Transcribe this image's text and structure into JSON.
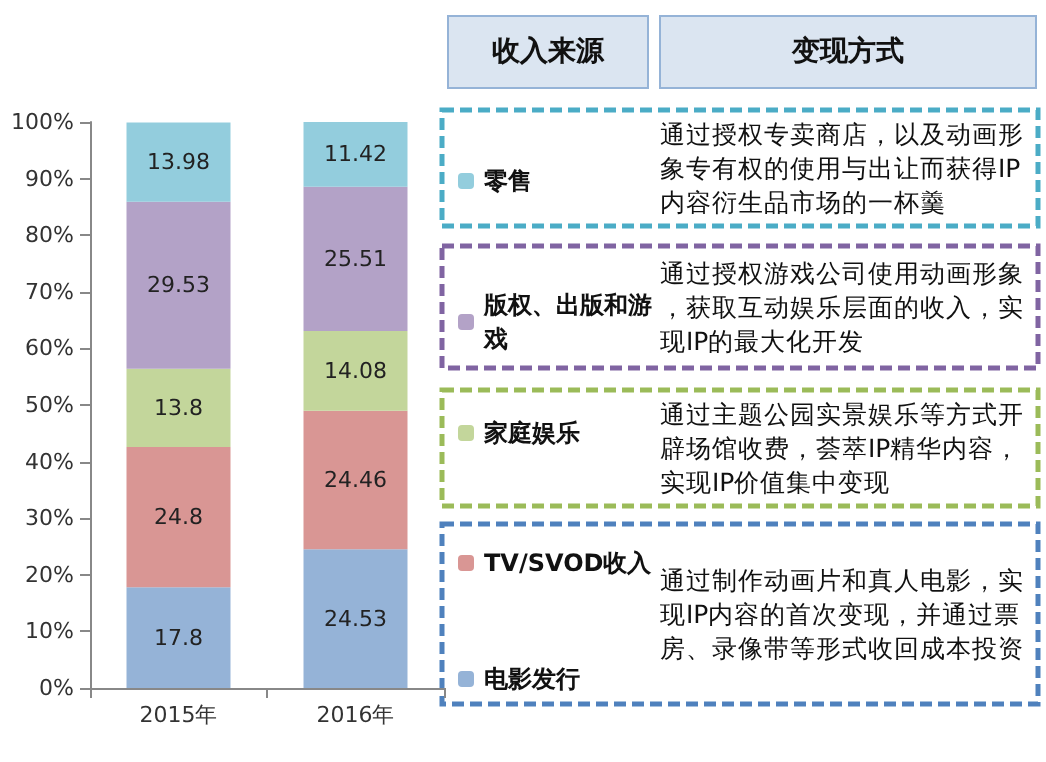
{
  "chart_data": {
    "type": "bar",
    "stacked": true,
    "data_labels": true,
    "legend": "right",
    "legend_title": "收入来源",
    "categories": [
      "2015年",
      "2016年"
    ],
    "ylim": [
      0,
      100
    ],
    "yticks": [
      {
        "value": 0,
        "label": "0%"
      },
      {
        "value": 10,
        "label": "10%"
      },
      {
        "value": 20,
        "label": "20%"
      },
      {
        "value": 30,
        "label": "30%"
      },
      {
        "value": 40,
        "label": "40%"
      },
      {
        "value": 50,
        "label": "50%"
      },
      {
        "value": 60,
        "label": "60%"
      },
      {
        "value": 70,
        "label": "70%"
      },
      {
        "value": 80,
        "label": "80%"
      },
      {
        "value": 90,
        "label": "90%"
      },
      {
        "value": 100,
        "label": "100%"
      }
    ],
    "series": [
      {
        "name": "电影发行",
        "color": "#95b3d7",
        "values": [
          17.8,
          24.53
        ]
      },
      {
        "name": "TV/SVOD收入",
        "color": "#d99694",
        "values": [
          24.8,
          24.46
        ]
      },
      {
        "name": "家庭娱乐",
        "color": "#c3d69b",
        "values": [
          13.8,
          14.08
        ]
      },
      {
        "name": "版权、出版和游戏",
        "color": "#b3a2c7",
        "values": [
          29.53,
          25.51
        ]
      },
      {
        "name": "零售",
        "color": "#93cddd",
        "values": [
          13.98,
          11.42
        ]
      }
    ],
    "annotations": [
      "变现方式",
      "通过授权专卖商店，以及动画形象专有权的使用与出让而获得IP内容衍生品市场的一杯羹",
      "通过授权游戏公司使用动画形象，获取互动娱乐层面的收入，实现IP的最大化开发",
      "通过主题公园实景娱乐等方式开辟场馆收费，荟萃IP精华内容，实现IP价值集中变现",
      "通过制作动画片和真人电影，实现IP内容的首次变现，并通过票房、录像带等形式收回成本投资"
    ]
  }
}
